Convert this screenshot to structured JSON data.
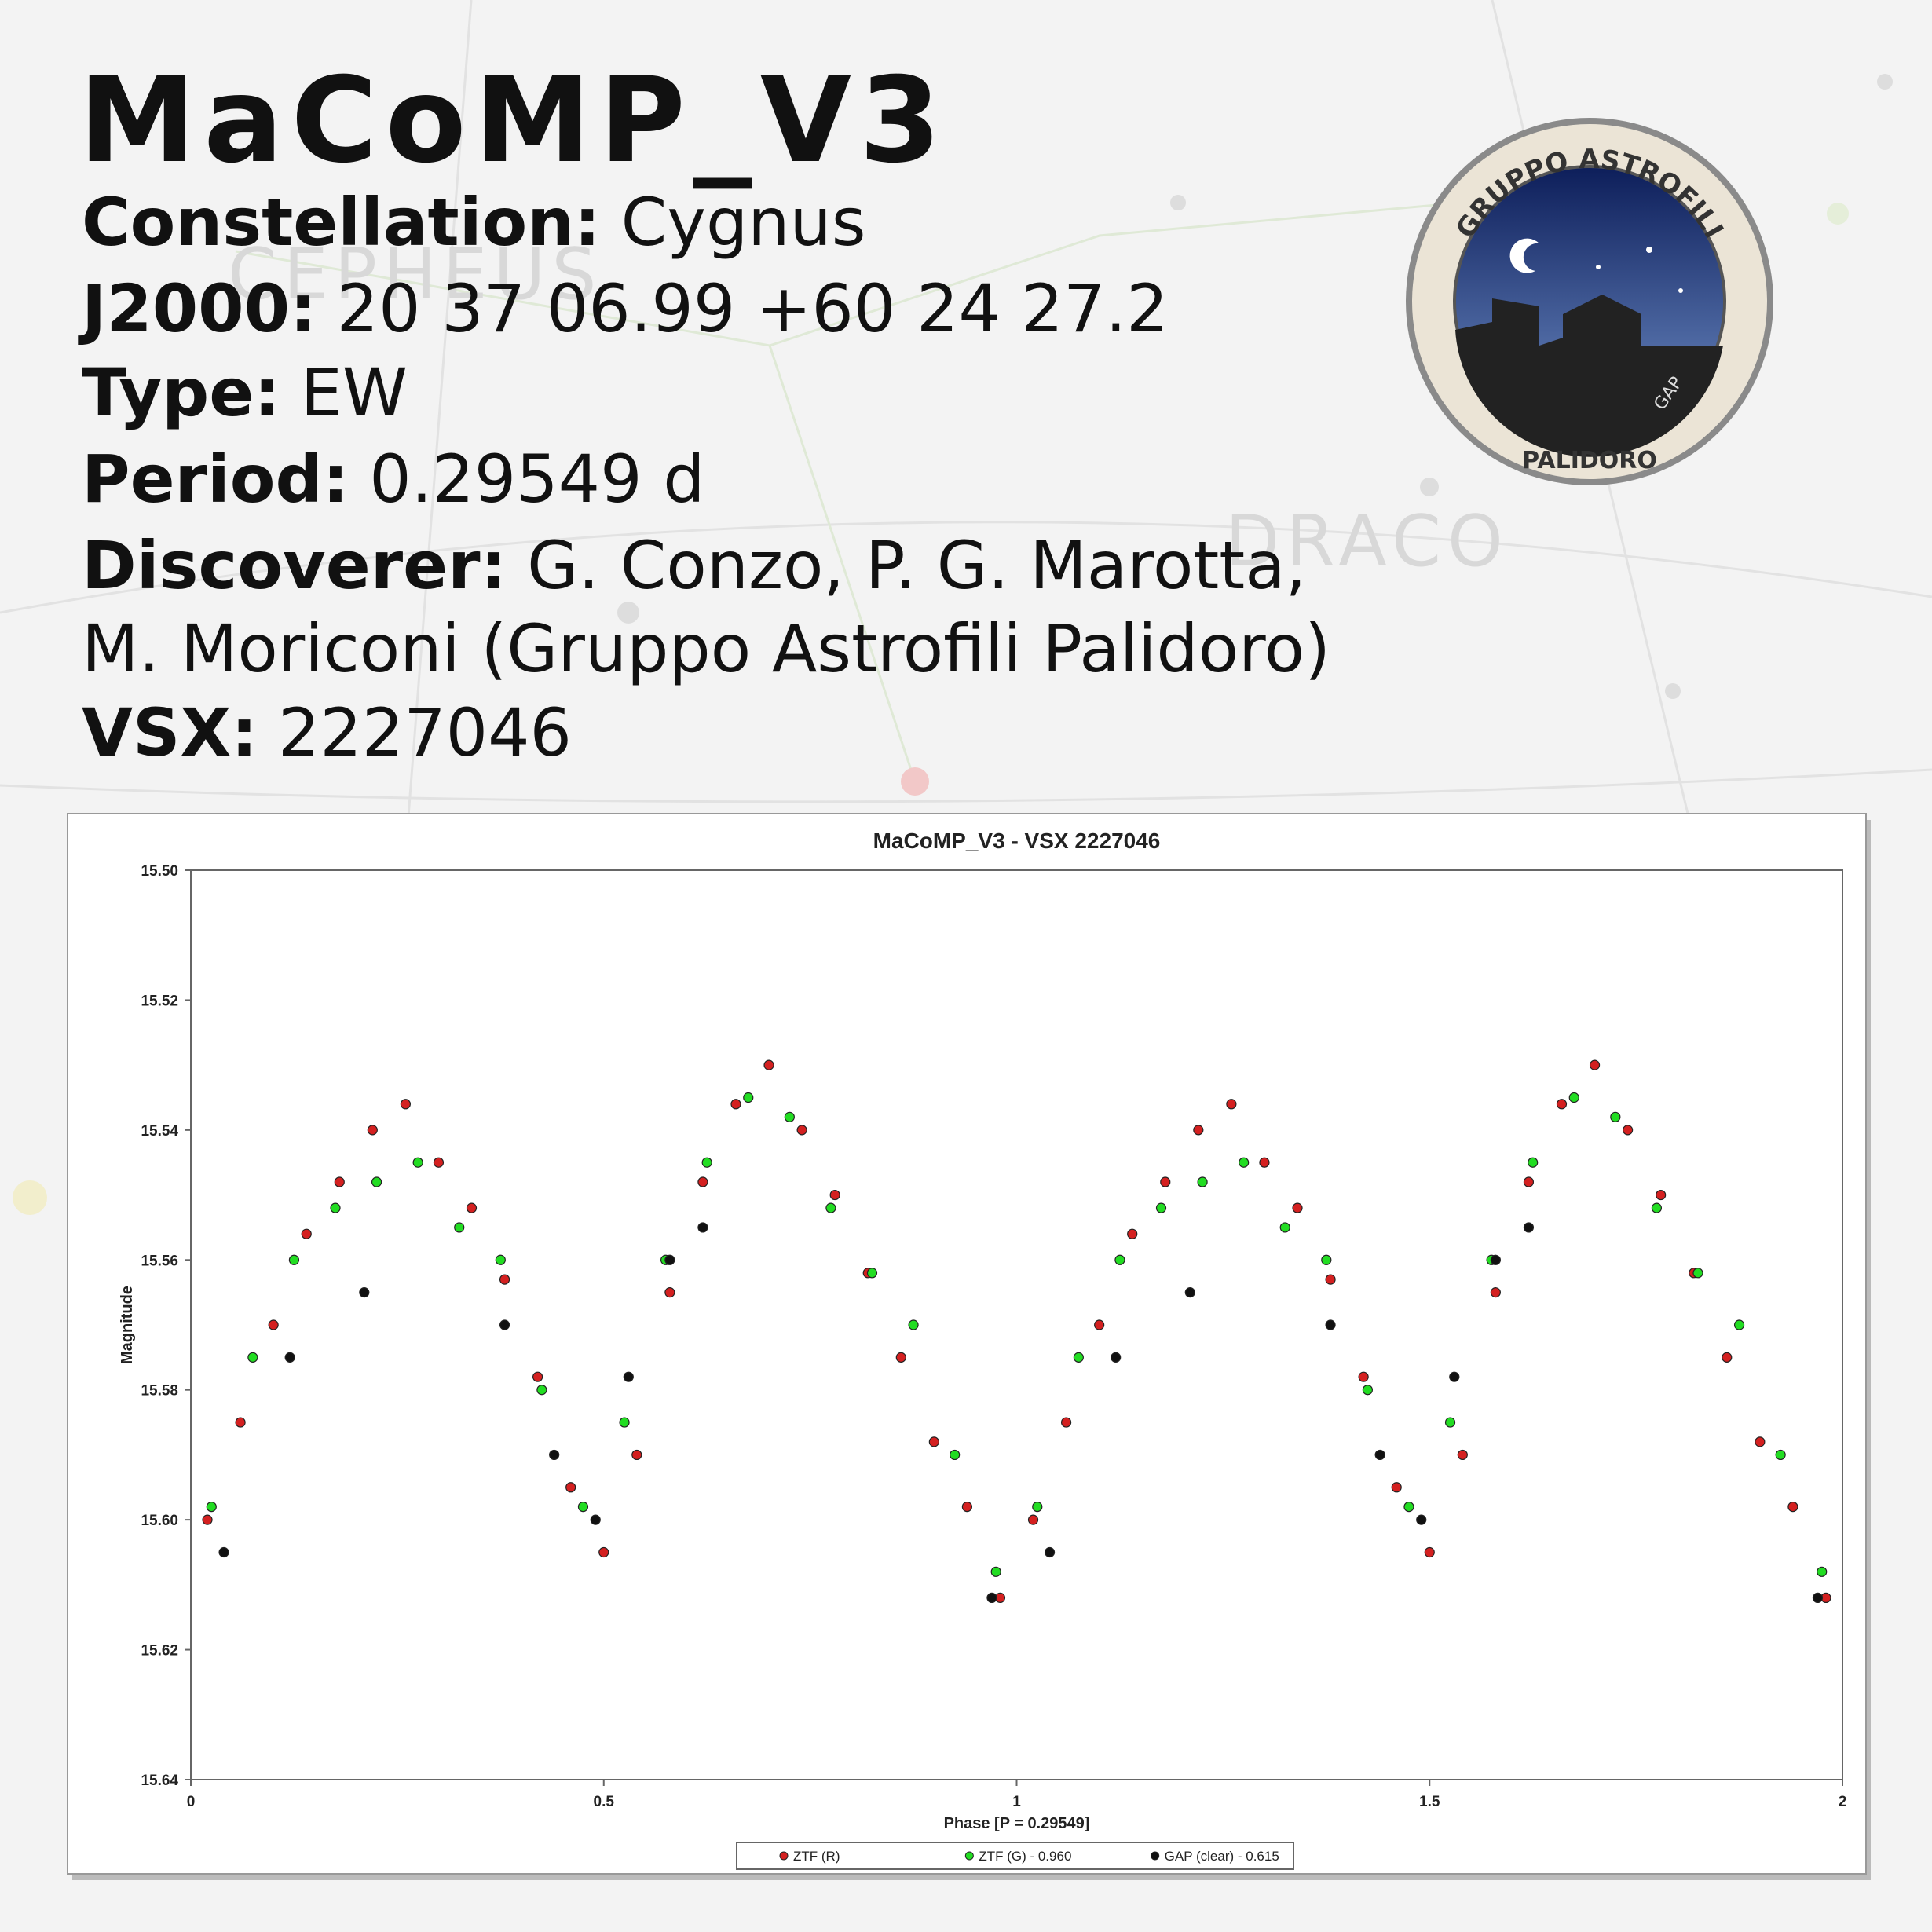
{
  "header": {
    "title": "MaCoMP_V3",
    "lines": [
      {
        "label": "Constellation:",
        "value": "Cygnus"
      },
      {
        "label": "J2000:",
        "value": "20 37 06.99 +60 24 27.2"
      },
      {
        "label": "Type:",
        "value": "EW"
      },
      {
        "label": "Period:",
        "value": "0.29549 d"
      },
      {
        "label": "Discoverer:",
        "value": "G. Conzo, P. G. Marotta,"
      },
      {
        "value": "M. Moriconi (Gruppo Astrofili Palidoro)"
      },
      {
        "label": "VSX:",
        "value": "2227046"
      }
    ]
  },
  "background_labels": [
    "CEPHEUS",
    "DRACO"
  ],
  "logo": {
    "top": "GRUPPO ASTROFILI",
    "bottom": "PALIDORO",
    "initials": "GAP"
  },
  "chart_data": {
    "type": "scatter",
    "title": "MaCoMP_V3 - VSX 2227046",
    "x_label": "Phase [P = 0.29549]",
    "y_label": "Magnitude",
    "xlim": [
      0,
      2
    ],
    "xticks": [
      0,
      0.5,
      1,
      1.5,
      2
    ],
    "ylim": [
      15.5,
      15.64
    ],
    "y_inverted": true,
    "yticks": [
      {
        "value": 15.5,
        "label": "15.50"
      },
      15.52,
      15.54,
      15.56,
      15.58,
      {
        "value": 15.6,
        "label": "15.60"
      },
      15.62,
      15.64
    ],
    "legend": "bottom",
    "series": [
      {
        "name": "ZTF (R)",
        "color": "#d42020",
        "x": [
          0.02,
          0.06,
          0.1,
          0.14,
          0.18,
          0.22,
          0.26,
          0.3,
          0.34,
          0.38,
          0.42,
          0.46,
          0.5,
          0.54,
          0.58,
          0.62,
          0.66,
          0.7,
          0.74,
          0.78,
          0.82,
          0.86,
          0.9,
          0.94,
          0.98,
          1.02,
          1.06,
          1.1,
          1.14,
          1.18,
          1.22,
          1.26,
          1.3,
          1.34,
          1.38,
          1.42,
          1.46,
          1.5,
          1.54,
          1.58,
          1.62,
          1.66,
          1.7,
          1.74,
          1.78,
          1.82,
          1.86,
          1.9,
          1.94,
          1.98
        ],
        "values": [
          15.6,
          15.585,
          15.57,
          15.556,
          15.548,
          15.54,
          15.536,
          15.545,
          15.552,
          15.563,
          15.578,
          15.595,
          15.605,
          15.59,
          15.565,
          15.548,
          15.536,
          15.53,
          15.54,
          15.55,
          15.562,
          15.575,
          15.588,
          15.598,
          15.612,
          15.6,
          15.585,
          15.57,
          15.556,
          15.548,
          15.54,
          15.536,
          15.545,
          15.552,
          15.563,
          15.578,
          15.595,
          15.605,
          15.59,
          15.565,
          15.548,
          15.536,
          15.53,
          15.54,
          15.55,
          15.562,
          15.575,
          15.588,
          15.598,
          15.612
        ]
      },
      {
        "name": "ZTF (G) - 0.960",
        "color": "#22dd22",
        "x": [
          0.025,
          0.075,
          0.125,
          0.175,
          0.225,
          0.275,
          0.325,
          0.375,
          0.425,
          0.475,
          0.525,
          0.575,
          0.625,
          0.675,
          0.725,
          0.775,
          0.825,
          0.875,
          0.925,
          0.975,
          1.025,
          1.075,
          1.125,
          1.175,
          1.225,
          1.275,
          1.325,
          1.375,
          1.425,
          1.475,
          1.525,
          1.575,
          1.625,
          1.675,
          1.725,
          1.775,
          1.825,
          1.875,
          1.925,
          1.975
        ],
        "values": [
          15.598,
          15.575,
          15.56,
          15.552,
          15.548,
          15.545,
          15.555,
          15.56,
          15.58,
          15.598,
          15.585,
          15.56,
          15.545,
          15.535,
          15.538,
          15.552,
          15.562,
          15.57,
          15.59,
          15.608,
          15.598,
          15.575,
          15.56,
          15.552,
          15.548,
          15.545,
          15.555,
          15.56,
          15.58,
          15.598,
          15.585,
          15.56,
          15.545,
          15.535,
          15.538,
          15.552,
          15.562,
          15.57,
          15.59,
          15.608
        ]
      },
      {
        "name": "GAP (clear) - 0.615",
        "color": "#111111",
        "x": [
          0.04,
          0.12,
          0.21,
          0.38,
          0.44,
          0.49,
          0.53,
          0.58,
          0.62,
          0.97,
          1.04,
          1.12,
          1.21,
          1.38,
          1.44,
          1.49,
          1.53,
          1.58,
          1.62,
          1.97
        ],
        "values": [
          15.605,
          15.575,
          15.565,
          15.57,
          15.59,
          15.6,
          15.578,
          15.56,
          15.555,
          15.612,
          15.605,
          15.575,
          15.565,
          15.57,
          15.59,
          15.6,
          15.578,
          15.56,
          15.555,
          15.612
        ]
      }
    ]
  }
}
